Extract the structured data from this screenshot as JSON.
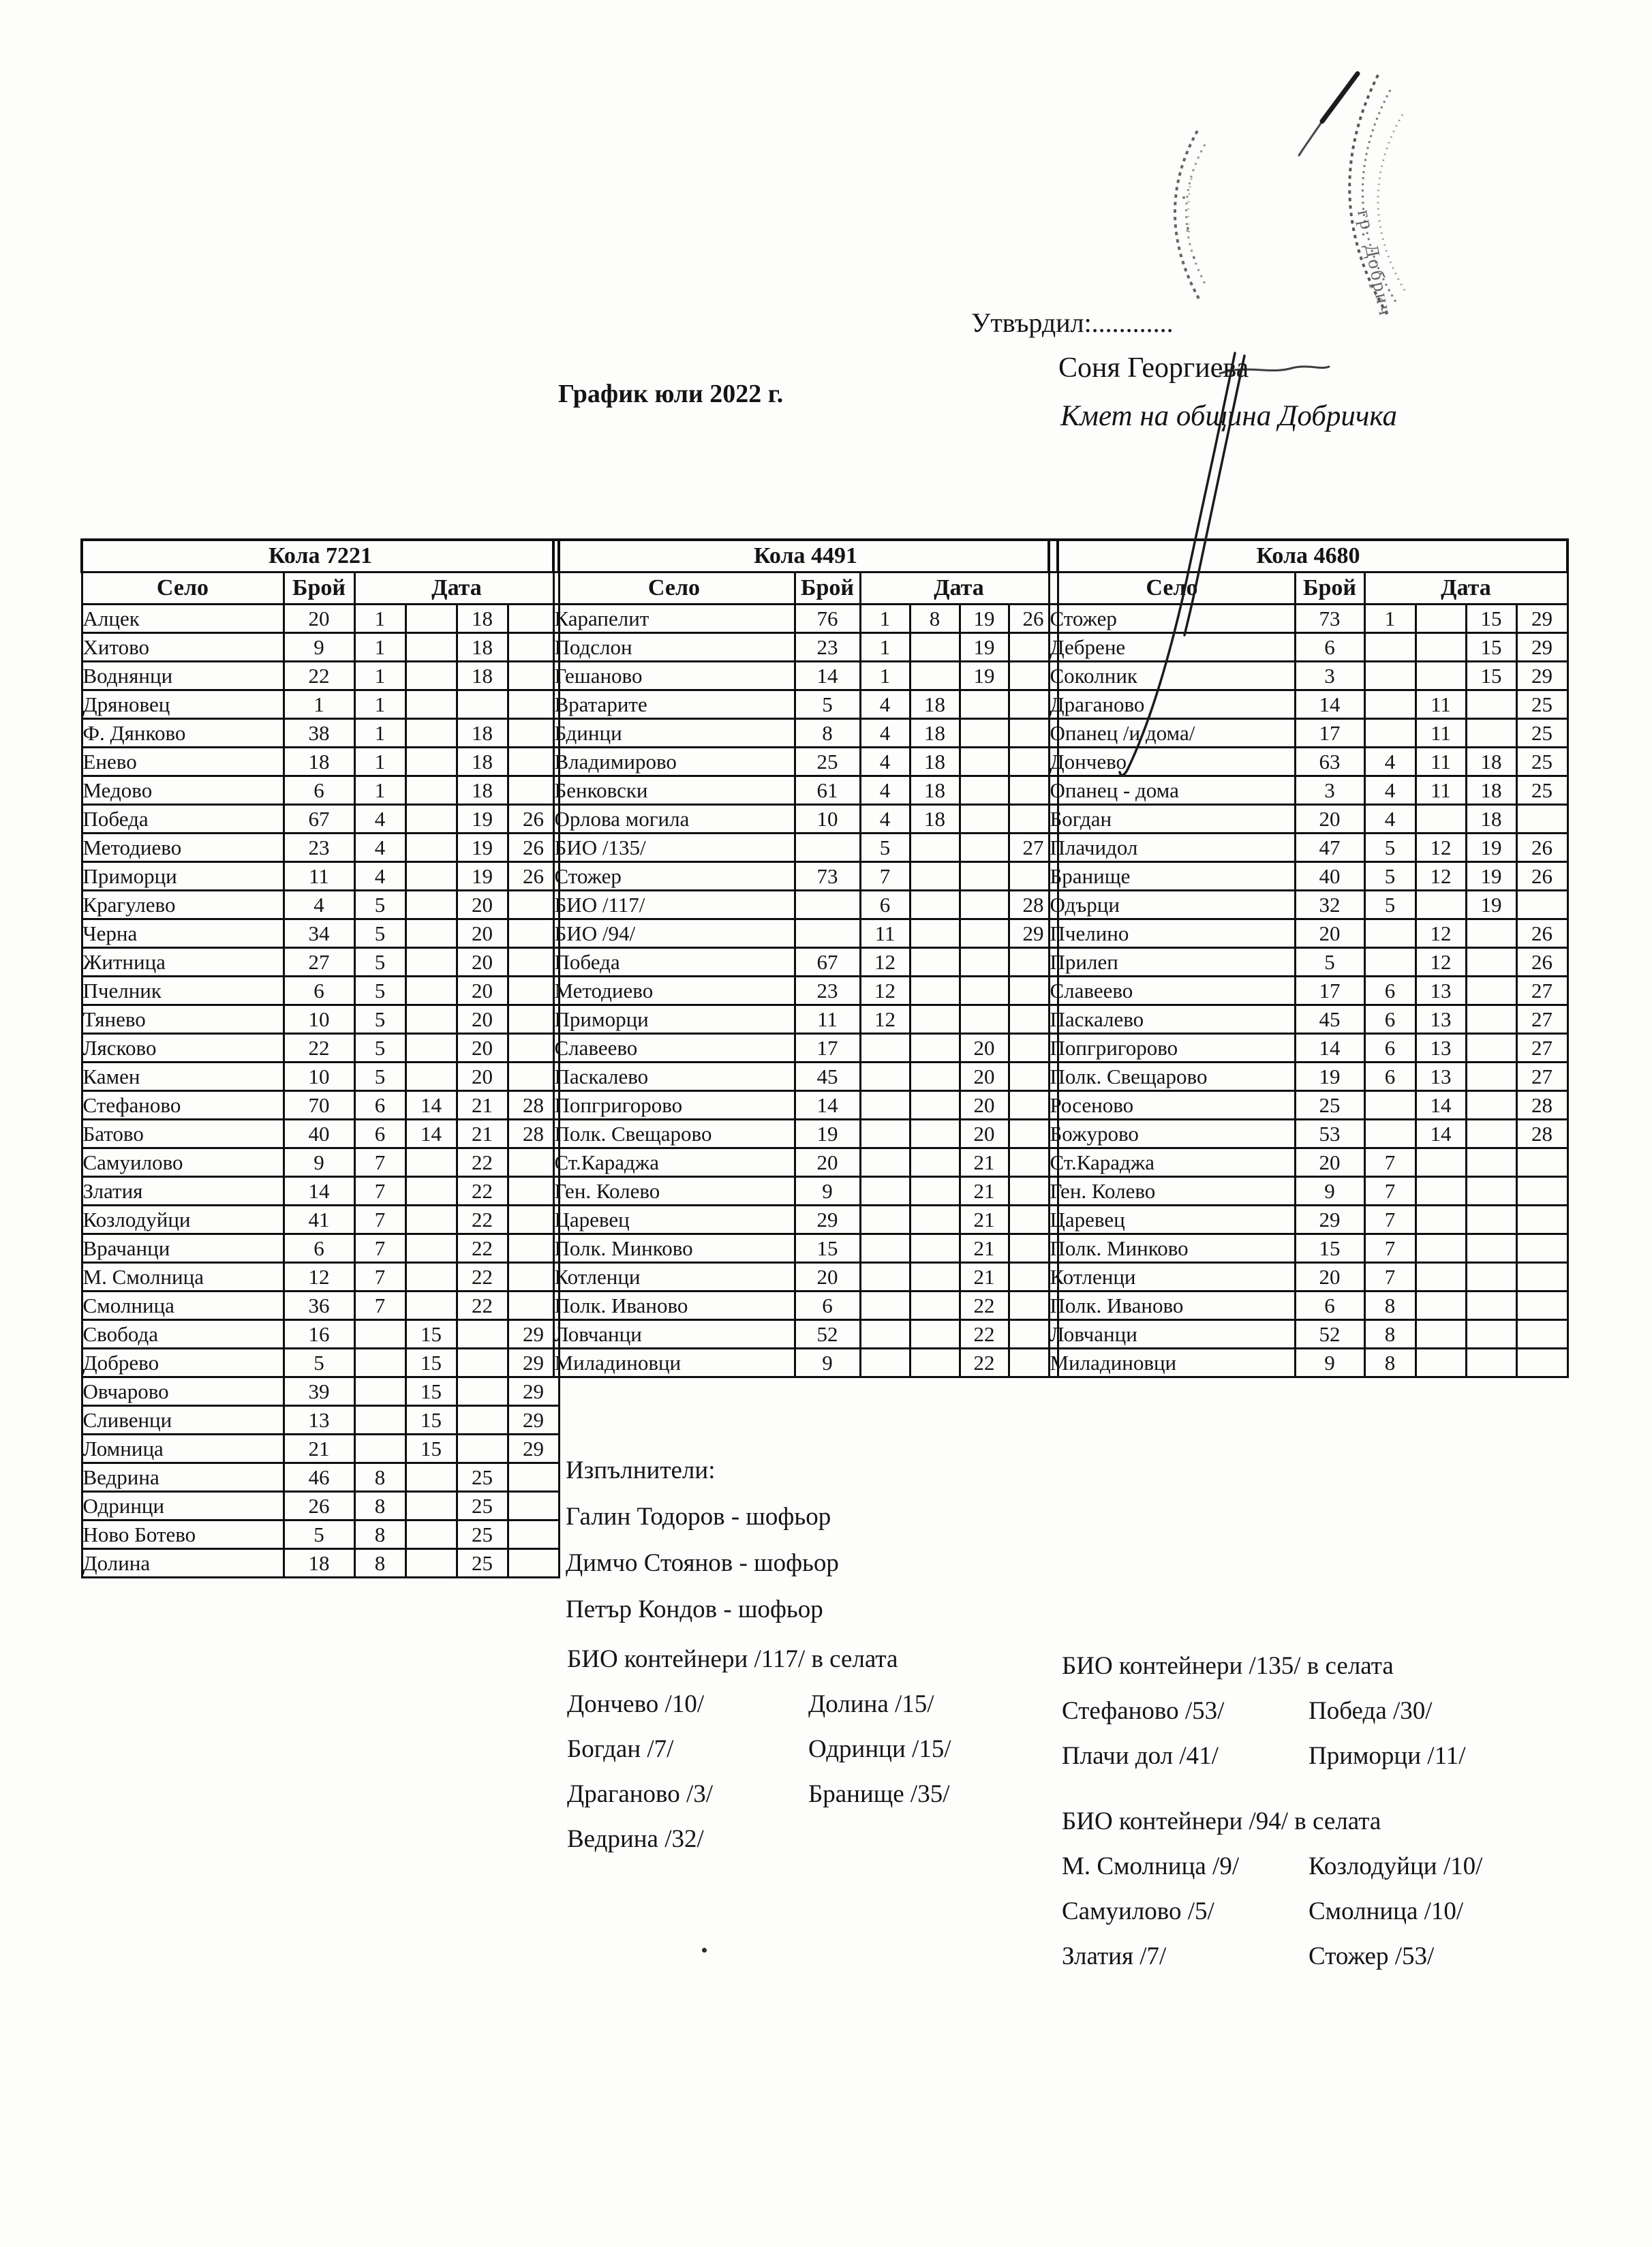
{
  "header": {
    "approved_label": "Утвърдил:............",
    "approver_name": "Соня Георгиева",
    "approver_title": "Кмет  на община Добричка",
    "doc_title": "График юли 2022 г.",
    "stamp_text": "гр. Добрич"
  },
  "table_headers": {
    "village": "Село",
    "count": "Брой",
    "date": "Дата"
  },
  "tables": [
    {
      "title": "Кола 7221",
      "rows": [
        {
          "village": "Алцек",
          "count": "20",
          "dates": [
            "1",
            "",
            "18",
            ""
          ]
        },
        {
          "village": "Хитово",
          "count": "9",
          "dates": [
            "1",
            "",
            "18",
            ""
          ]
        },
        {
          "village": "Воднянци",
          "count": "22",
          "dates": [
            "1",
            "",
            "18",
            ""
          ]
        },
        {
          "village": "Дряновец",
          "count": "1",
          "dates": [
            "1",
            "",
            "",
            ""
          ]
        },
        {
          "village": "Ф. Дянково",
          "count": "38",
          "dates": [
            "1",
            "",
            "18",
            ""
          ]
        },
        {
          "village": "Енево",
          "count": "18",
          "dates": [
            "1",
            "",
            "18",
            ""
          ]
        },
        {
          "village": "Медово",
          "count": "6",
          "dates": [
            "1",
            "",
            "18",
            ""
          ]
        },
        {
          "village": "Победа",
          "count": "67",
          "dates": [
            "4",
            "",
            "19",
            "26"
          ]
        },
        {
          "village": "Методиево",
          "count": "23",
          "dates": [
            "4",
            "",
            "19",
            "26"
          ]
        },
        {
          "village": "Приморци",
          "count": "11",
          "dates": [
            "4",
            "",
            "19",
            "26"
          ]
        },
        {
          "village": "Крагулево",
          "count": "4",
          "dates": [
            "5",
            "",
            "20",
            ""
          ]
        },
        {
          "village": "Черна",
          "count": "34",
          "dates": [
            "5",
            "",
            "20",
            ""
          ]
        },
        {
          "village": "Житница",
          "count": "27",
          "dates": [
            "5",
            "",
            "20",
            ""
          ]
        },
        {
          "village": "Пчелник",
          "count": "6",
          "dates": [
            "5",
            "",
            "20",
            ""
          ]
        },
        {
          "village": "Тянево",
          "count": "10",
          "dates": [
            "5",
            "",
            "20",
            ""
          ]
        },
        {
          "village": "Лясково",
          "count": "22",
          "dates": [
            "5",
            "",
            "20",
            ""
          ]
        },
        {
          "village": "Камен",
          "count": "10",
          "dates": [
            "5",
            "",
            "20",
            ""
          ]
        },
        {
          "village": "Стефаново",
          "count": "70",
          "dates": [
            "6",
            "14",
            "21",
            "28"
          ]
        },
        {
          "village": "Батово",
          "count": "40",
          "dates": [
            "6",
            "14",
            "21",
            "28"
          ]
        },
        {
          "village": "Самуилово",
          "count": "9",
          "dates": [
            "7",
            "",
            "22",
            ""
          ]
        },
        {
          "village": "Златия",
          "count": "14",
          "dates": [
            "7",
            "",
            "22",
            ""
          ]
        },
        {
          "village": "Козлодуйци",
          "count": "41",
          "dates": [
            "7",
            "",
            "22",
            ""
          ]
        },
        {
          "village": "Врачанци",
          "count": "6",
          "dates": [
            "7",
            "",
            "22",
            ""
          ]
        },
        {
          "village": "М. Смолница",
          "count": "12",
          "dates": [
            "7",
            "",
            "22",
            ""
          ]
        },
        {
          "village": "Смолница",
          "count": "36",
          "dates": [
            "7",
            "",
            "22",
            ""
          ]
        },
        {
          "village": "Свобода",
          "count": "16",
          "dates": [
            "",
            "15",
            "",
            "29"
          ]
        },
        {
          "village": "Добрево",
          "count": "5",
          "dates": [
            "",
            "15",
            "",
            "29"
          ]
        },
        {
          "village": "Овчарово",
          "count": "39",
          "dates": [
            "",
            "15",
            "",
            "29"
          ]
        },
        {
          "village": "Сливенци",
          "count": "13",
          "dates": [
            "",
            "15",
            "",
            "29"
          ]
        },
        {
          "village": "Ломница",
          "count": "21",
          "dates": [
            "",
            "15",
            "",
            "29"
          ]
        },
        {
          "village": "Ведрина",
          "count": "46",
          "dates": [
            "8",
            "",
            "25",
            ""
          ]
        },
        {
          "village": "Одринци",
          "count": "26",
          "dates": [
            "8",
            "",
            "25",
            ""
          ]
        },
        {
          "village": "Ново Ботево",
          "count": "5",
          "dates": [
            "8",
            "",
            "25",
            ""
          ]
        },
        {
          "village": "Долина",
          "count": "18",
          "dates": [
            "8",
            "",
            "25",
            ""
          ]
        }
      ]
    },
    {
      "title": "Кола 4491",
      "rows": [
        {
          "village": "Карапелит",
          "count": "76",
          "dates": [
            "1",
            "8",
            "19",
            "26"
          ]
        },
        {
          "village": "Подслон",
          "count": "23",
          "dates": [
            "1",
            "",
            "19",
            ""
          ]
        },
        {
          "village": "Гешаново",
          "count": "14",
          "dates": [
            "1",
            "",
            "19",
            ""
          ]
        },
        {
          "village": "Вратарите",
          "count": "5",
          "dates": [
            "4",
            "18",
            "",
            ""
          ]
        },
        {
          "village": "Бдинци",
          "count": "8",
          "dates": [
            "4",
            "18",
            "",
            ""
          ]
        },
        {
          "village": "Владимирово",
          "count": "25",
          "dates": [
            "4",
            "18",
            "",
            ""
          ]
        },
        {
          "village": "Бенковски",
          "count": "61",
          "dates": [
            "4",
            "18",
            "",
            ""
          ]
        },
        {
          "village": "Орлова могила",
          "count": "10",
          "dates": [
            "4",
            "18",
            "",
            ""
          ]
        },
        {
          "village": "БИО /135/",
          "count": "",
          "dates": [
            "5",
            "",
            "",
            "27"
          ]
        },
        {
          "village": "Стожер",
          "count": "73",
          "dates": [
            "7",
            "",
            "",
            ""
          ]
        },
        {
          "village": "БИО /117/",
          "count": "",
          "dates": [
            "6",
            "",
            "",
            "28"
          ]
        },
        {
          "village": "БИО /94/",
          "count": "",
          "dates": [
            "11",
            "",
            "",
            "29"
          ]
        },
        {
          "village": "Победа",
          "count": "67",
          "dates": [
            "12",
            "",
            "",
            ""
          ]
        },
        {
          "village": "Методиево",
          "count": "23",
          "dates": [
            "12",
            "",
            "",
            ""
          ]
        },
        {
          "village": "Приморци",
          "count": "11",
          "dates": [
            "12",
            "",
            "",
            ""
          ]
        },
        {
          "village": "Славеево",
          "count": "17",
          "dates": [
            "",
            "",
            "20",
            ""
          ]
        },
        {
          "village": "Паскалево",
          "count": "45",
          "dates": [
            "",
            "",
            "20",
            ""
          ]
        },
        {
          "village": "Попгригорово",
          "count": "14",
          "dates": [
            "",
            "",
            "20",
            ""
          ]
        },
        {
          "village": "Полк. Свещарово",
          "count": "19",
          "dates": [
            "",
            "",
            "20",
            ""
          ]
        },
        {
          "village": "Ст.Караджа",
          "count": "20",
          "dates": [
            "",
            "",
            "21",
            ""
          ]
        },
        {
          "village": "Ген. Колево",
          "count": "9",
          "dates": [
            "",
            "",
            "21",
            ""
          ]
        },
        {
          "village": "Царевец",
          "count": "29",
          "dates": [
            "",
            "",
            "21",
            ""
          ]
        },
        {
          "village": "Полк. Минково",
          "count": "15",
          "dates": [
            "",
            "",
            "21",
            ""
          ]
        },
        {
          "village": "Котленци",
          "count": "20",
          "dates": [
            "",
            "",
            "21",
            ""
          ]
        },
        {
          "village": "Полк. Иваново",
          "count": "6",
          "dates": [
            "",
            "",
            "22",
            ""
          ]
        },
        {
          "village": "Ловчанци",
          "count": "52",
          "dates": [
            "",
            "",
            "22",
            ""
          ]
        },
        {
          "village": "Миладиновци",
          "count": "9",
          "dates": [
            "",
            "",
            "22",
            ""
          ]
        }
      ]
    },
    {
      "title": "Кола 4680",
      "rows": [
        {
          "village": "Стожер",
          "count": "73",
          "dates": [
            "1",
            "",
            "15",
            "29"
          ]
        },
        {
          "village": "Дебрене",
          "count": "6",
          "dates": [
            "",
            "",
            "15",
            "29"
          ]
        },
        {
          "village": "Соколник",
          "count": "3",
          "dates": [
            "",
            "",
            "15",
            "29"
          ]
        },
        {
          "village": "Драганово",
          "count": "14",
          "dates": [
            "",
            "11",
            "",
            "25"
          ]
        },
        {
          "village": "Опанец /и дома/",
          "count": "17",
          "dates": [
            "",
            "11",
            "",
            "25"
          ]
        },
        {
          "village": "Дончево",
          "count": "63",
          "dates": [
            "4",
            "11",
            "18",
            "25"
          ]
        },
        {
          "village": "Опанец - дома",
          "count": "3",
          "dates": [
            "4",
            "11",
            "18",
            "25"
          ]
        },
        {
          "village": "Богдан",
          "count": "20",
          "dates": [
            "4",
            "",
            "18",
            ""
          ]
        },
        {
          "village": "Плачидол",
          "count": "47",
          "dates": [
            "5",
            "12",
            "19",
            "26"
          ]
        },
        {
          "village": "Бранище",
          "count": "40",
          "dates": [
            "5",
            "12",
            "19",
            "26"
          ]
        },
        {
          "village": "Одърци",
          "count": "32",
          "dates": [
            "5",
            "",
            "19",
            ""
          ]
        },
        {
          "village": "Пчелино",
          "count": "20",
          "dates": [
            "",
            "12",
            "",
            "26"
          ]
        },
        {
          "village": "Прилеп",
          "count": "5",
          "dates": [
            "",
            "12",
            "",
            "26"
          ]
        },
        {
          "village": "Славеево",
          "count": "17",
          "dates": [
            "6",
            "13",
            "",
            "27"
          ]
        },
        {
          "village": "Паскалево",
          "count": "45",
          "dates": [
            "6",
            "13",
            "",
            "27"
          ]
        },
        {
          "village": "Попгригорово",
          "count": "14",
          "dates": [
            "6",
            "13",
            "",
            "27"
          ]
        },
        {
          "village": "Полк. Свещарово",
          "count": "19",
          "dates": [
            "6",
            "13",
            "",
            "27"
          ]
        },
        {
          "village": "Росеново",
          "count": "25",
          "dates": [
            "",
            "14",
            "",
            "28"
          ]
        },
        {
          "village": "Божурово",
          "count": "53",
          "dates": [
            "",
            "14",
            "",
            "28"
          ]
        },
        {
          "village": "Ст.Караджа",
          "count": "20",
          "dates": [
            "7",
            "",
            "",
            ""
          ]
        },
        {
          "village": "Ген. Колево",
          "count": "9",
          "dates": [
            "7",
            "",
            "",
            ""
          ]
        },
        {
          "village": "Царевец",
          "count": "29",
          "dates": [
            "7",
            "",
            "",
            ""
          ]
        },
        {
          "village": "Полк. Минково",
          "count": "15",
          "dates": [
            "7",
            "",
            "",
            ""
          ]
        },
        {
          "village": "Котленци",
          "count": "20",
          "dates": [
            "7",
            "",
            "",
            ""
          ]
        },
        {
          "village": "Полк. Иваново",
          "count": "6",
          "dates": [
            "8",
            "",
            "",
            ""
          ]
        },
        {
          "village": "Ловчанци",
          "count": "52",
          "dates": [
            "8",
            "",
            "",
            ""
          ]
        },
        {
          "village": "Миладиновци",
          "count": "9",
          "dates": [
            "8",
            "",
            "",
            ""
          ]
        }
      ]
    }
  ],
  "executors": {
    "heading": "Изпълнители:",
    "items": [
      "Галин Тодоров - шофьор",
      "Димчо Стоянов - шофьор",
      "Петър Кондов - шофьор"
    ]
  },
  "bio_sections": [
    {
      "heading": "БИО контейнери /117/ в селата",
      "rows": [
        [
          "Дончево /10/",
          "Долина /15/"
        ],
        [
          "Богдан /7/",
          "Одринци /15/"
        ],
        [
          "Драганово /3/",
          "Бранище /35/"
        ],
        [
          "Ведрина /32/",
          ""
        ]
      ]
    },
    {
      "heading": "БИО контейнери /135/ в селата",
      "rows": [
        [
          "Стефаново /53/",
          "Победа /30/"
        ],
        [
          "Плачи дол /41/",
          "Приморци /11/"
        ]
      ]
    },
    {
      "heading": "БИО контейнери /94/ в селата",
      "rows": [
        [
          "М. Смолница /9/",
          "Козлодуйци /10/"
        ],
        [
          "Самуилово /5/",
          "Смолница /10/"
        ],
        [
          "Златия /7/",
          "Стожер /53/"
        ]
      ]
    }
  ]
}
